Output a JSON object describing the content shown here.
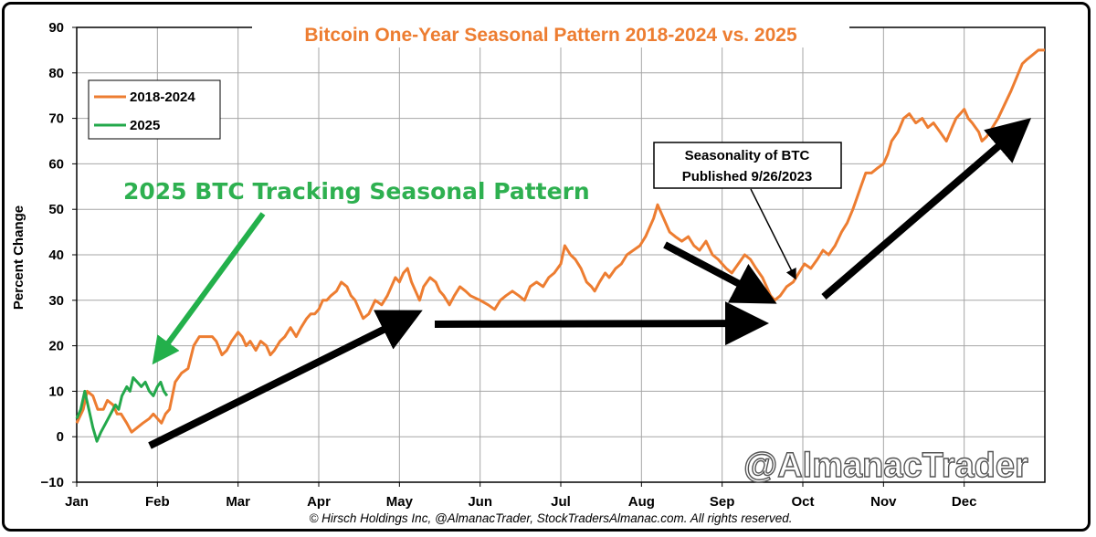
{
  "chart_data": {
    "type": "line",
    "title": "Bitcoin One-Year Seasonal Pattern 2018-2024 vs. 2025",
    "ylabel": "Percent Change",
    "xlabel": "",
    "ylim": [
      -10,
      90
    ],
    "yticks": [
      "90",
      "80",
      "70",
      "60",
      "50",
      "40",
      "30",
      "20",
      "10",
      "0",
      "−10"
    ],
    "x_months": [
      "Jan",
      "Feb",
      "Mar",
      "Apr",
      "May",
      "Jun",
      "Jul",
      "Aug",
      "Sep",
      "Oct",
      "Nov",
      "Dec"
    ],
    "grid": true,
    "legend_position": "top-left",
    "series": [
      {
        "name": "2018-2024",
        "color": "#ed7d31",
        "points": [
          [
            0.0,
            3
          ],
          [
            0.08,
            6
          ],
          [
            0.13,
            10
          ],
          [
            0.2,
            9
          ],
          [
            0.26,
            6
          ],
          [
            0.33,
            6
          ],
          [
            0.38,
            8
          ],
          [
            0.45,
            7
          ],
          [
            0.5,
            5
          ],
          [
            0.55,
            5
          ],
          [
            0.62,
            3
          ],
          [
            0.68,
            1
          ],
          [
            0.75,
            2
          ],
          [
            0.82,
            3
          ],
          [
            0.9,
            4
          ],
          [
            0.95,
            5
          ],
          [
            1.0,
            4
          ],
          [
            1.05,
            3
          ],
          [
            1.1,
            5
          ],
          [
            1.15,
            6
          ],
          [
            1.22,
            12
          ],
          [
            1.3,
            14
          ],
          [
            1.38,
            15
          ],
          [
            1.45,
            20
          ],
          [
            1.52,
            22
          ],
          [
            1.6,
            22
          ],
          [
            1.68,
            22
          ],
          [
            1.73,
            21
          ],
          [
            1.8,
            18
          ],
          [
            1.86,
            19
          ],
          [
            1.92,
            21
          ],
          [
            2.0,
            23
          ],
          [
            2.05,
            22
          ],
          [
            2.1,
            20
          ],
          [
            2.15,
            21
          ],
          [
            2.22,
            19
          ],
          [
            2.28,
            21
          ],
          [
            2.35,
            20
          ],
          [
            2.4,
            18
          ],
          [
            2.45,
            19
          ],
          [
            2.52,
            21
          ],
          [
            2.58,
            22
          ],
          [
            2.65,
            24
          ],
          [
            2.72,
            22
          ],
          [
            2.78,
            24
          ],
          [
            2.85,
            26
          ],
          [
            2.9,
            27
          ],
          [
            2.95,
            27
          ],
          [
            3.0,
            28
          ],
          [
            3.05,
            30
          ],
          [
            3.1,
            30
          ],
          [
            3.15,
            31
          ],
          [
            3.22,
            32
          ],
          [
            3.28,
            34
          ],
          [
            3.35,
            33
          ],
          [
            3.4,
            31
          ],
          [
            3.45,
            30
          ],
          [
            3.5,
            28
          ],
          [
            3.55,
            26
          ],
          [
            3.62,
            27
          ],
          [
            3.7,
            30
          ],
          [
            3.78,
            29
          ],
          [
            3.85,
            31
          ],
          [
            3.9,
            33
          ],
          [
            3.95,
            35
          ],
          [
            4.0,
            34
          ],
          [
            4.05,
            36
          ],
          [
            4.1,
            37
          ],
          [
            4.15,
            34
          ],
          [
            4.2,
            32
          ],
          [
            4.25,
            30
          ],
          [
            4.3,
            33
          ],
          [
            4.38,
            35
          ],
          [
            4.45,
            34
          ],
          [
            4.5,
            32
          ],
          [
            4.55,
            31
          ],
          [
            4.62,
            29
          ],
          [
            4.68,
            31
          ],
          [
            4.75,
            33
          ],
          [
            4.82,
            32
          ],
          [
            4.88,
            31
          ],
          [
            5.0,
            30
          ],
          [
            5.1,
            29
          ],
          [
            5.18,
            28
          ],
          [
            5.25,
            30
          ],
          [
            5.32,
            31
          ],
          [
            5.4,
            32
          ],
          [
            5.48,
            31
          ],
          [
            5.55,
            30
          ],
          [
            5.62,
            33
          ],
          [
            5.7,
            34
          ],
          [
            5.78,
            33
          ],
          [
            5.85,
            35
          ],
          [
            5.92,
            36
          ],
          [
            6.0,
            38
          ],
          [
            6.05,
            42
          ],
          [
            6.12,
            40
          ],
          [
            6.18,
            39
          ],
          [
            6.25,
            37
          ],
          [
            6.32,
            34
          ],
          [
            6.38,
            33
          ],
          [
            6.42,
            32
          ],
          [
            6.48,
            34
          ],
          [
            6.55,
            36
          ],
          [
            6.6,
            35
          ],
          [
            6.68,
            37
          ],
          [
            6.75,
            38
          ],
          [
            6.82,
            40
          ],
          [
            6.9,
            41
          ],
          [
            6.98,
            42
          ],
          [
            7.05,
            44
          ],
          [
            7.1,
            46
          ],
          [
            7.15,
            48
          ],
          [
            7.2,
            51
          ],
          [
            7.25,
            49
          ],
          [
            7.3,
            47
          ],
          [
            7.35,
            45
          ],
          [
            7.42,
            44
          ],
          [
            7.5,
            43
          ],
          [
            7.58,
            44
          ],
          [
            7.65,
            42
          ],
          [
            7.72,
            41
          ],
          [
            7.8,
            43
          ],
          [
            7.88,
            40
          ],
          [
            7.95,
            39
          ],
          [
            8.0,
            38
          ],
          [
            8.05,
            37
          ],
          [
            8.12,
            36
          ],
          [
            8.2,
            38
          ],
          [
            8.28,
            40
          ],
          [
            8.35,
            39
          ],
          [
            8.42,
            37
          ],
          [
            8.5,
            35
          ],
          [
            8.55,
            33
          ],
          [
            8.6,
            31
          ],
          [
            8.65,
            30
          ],
          [
            8.72,
            31
          ],
          [
            8.8,
            33
          ],
          [
            8.88,
            34
          ],
          [
            8.95,
            36
          ],
          [
            9.02,
            38
          ],
          [
            9.1,
            37
          ],
          [
            9.18,
            39
          ],
          [
            9.25,
            41
          ],
          [
            9.32,
            40
          ],
          [
            9.4,
            42
          ],
          [
            9.48,
            45
          ],
          [
            9.55,
            47
          ],
          [
            9.62,
            50
          ],
          [
            9.68,
            53
          ],
          [
            9.72,
            55
          ],
          [
            9.78,
            58
          ],
          [
            9.85,
            58
          ],
          [
            9.92,
            59
          ],
          [
            10.0,
            60
          ],
          [
            10.05,
            62
          ],
          [
            10.1,
            65
          ],
          [
            10.18,
            67
          ],
          [
            10.25,
            70
          ],
          [
            10.32,
            71
          ],
          [
            10.4,
            69
          ],
          [
            10.48,
            70
          ],
          [
            10.55,
            68
          ],
          [
            10.62,
            69
          ],
          [
            10.7,
            67
          ],
          [
            10.78,
            65
          ],
          [
            10.85,
            68
          ],
          [
            10.9,
            70
          ],
          [
            10.95,
            71
          ],
          [
            11.0,
            72
          ],
          [
            11.05,
            70
          ],
          [
            11.1,
            69
          ],
          [
            11.18,
            67
          ],
          [
            11.22,
            65
          ],
          [
            11.28,
            66
          ],
          [
            11.35,
            68
          ],
          [
            11.42,
            70
          ],
          [
            11.5,
            73
          ],
          [
            11.58,
            76
          ],
          [
            11.65,
            79
          ],
          [
            11.72,
            82
          ],
          [
            11.78,
            83
          ],
          [
            11.85,
            84
          ],
          [
            11.92,
            85
          ],
          [
            12.0,
            85
          ]
        ]
      },
      {
        "name": "2025",
        "color": "#23a84b",
        "points": [
          [
            0.0,
            4
          ],
          [
            0.05,
            6
          ],
          [
            0.1,
            10
          ],
          [
            0.15,
            6
          ],
          [
            0.2,
            2
          ],
          [
            0.25,
            -1
          ],
          [
            0.3,
            1
          ],
          [
            0.36,
            3
          ],
          [
            0.42,
            5
          ],
          [
            0.48,
            7
          ],
          [
            0.52,
            6
          ],
          [
            0.56,
            9
          ],
          [
            0.62,
            11
          ],
          [
            0.66,
            10
          ],
          [
            0.7,
            13
          ],
          [
            0.75,
            12
          ],
          [
            0.8,
            11
          ],
          [
            0.85,
            12
          ],
          [
            0.9,
            10
          ],
          [
            0.95,
            9
          ],
          [
            1.0,
            11
          ],
          [
            1.04,
            12
          ],
          [
            1.08,
            10
          ],
          [
            1.12,
            9
          ]
        ]
      }
    ],
    "annotations": {
      "green_label": "2025 BTC Tracking Seasonal Pattern",
      "callout_line1": "Seasonality of BTC",
      "callout_line2": "Published 9/26/2023"
    }
  },
  "watermark": "@AlmanacTrader",
  "footer": "© Hirsch Holdings Inc, @AlmanacTrader, StockTradersAlmanac.com. All rights reserved."
}
